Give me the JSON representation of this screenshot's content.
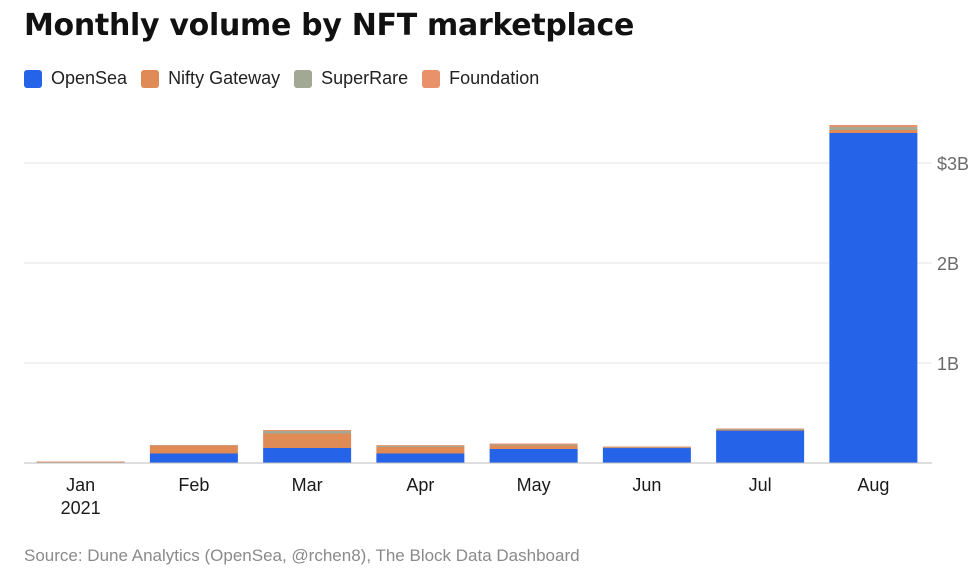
{
  "title": "Monthly volume by NFT marketplace",
  "source": "Source: Dune Analytics (OpenSea, @rchen8), The Block Data Dashboard",
  "colors": {
    "OpenSea": "#2563e8",
    "Nifty Gateway": "#e08a55",
    "SuperRare": "#a3a895",
    "Foundation": "#e8916b"
  },
  "chart_data": {
    "type": "bar",
    "stacked": true,
    "title": "Monthly volume by NFT marketplace",
    "categories": [
      "Jan\n2021",
      "Feb",
      "Mar",
      "Apr",
      "May",
      "Jun",
      "Jul",
      "Aug"
    ],
    "series": [
      {
        "name": "OpenSea",
        "values": [
          8000000,
          95000000,
          150000000,
          95000000,
          140000000,
          150000000,
          325000000,
          3300000000
        ]
      },
      {
        "name": "Nifty Gateway",
        "values": [
          4000000,
          75000000,
          145000000,
          65000000,
          35000000,
          5000000,
          5000000,
          30000000
        ]
      },
      {
        "name": "SuperRare",
        "values": [
          2000000,
          8000000,
          25000000,
          12000000,
          10000000,
          5000000,
          10000000,
          30000000
        ]
      },
      {
        "name": "Foundation",
        "values": [
          1000000,
          2000000,
          10000000,
          8000000,
          10000000,
          5000000,
          5000000,
          20000000
        ]
      }
    ],
    "yticks": [
      {
        "value": 1000000000,
        "label": "1B"
      },
      {
        "value": 2000000000,
        "label": "2B"
      },
      {
        "value": 3000000000,
        "label": "$3B"
      }
    ],
    "ylim": [
      0,
      3400000000
    ],
    "grid": true,
    "legend_position": "top-left"
  }
}
